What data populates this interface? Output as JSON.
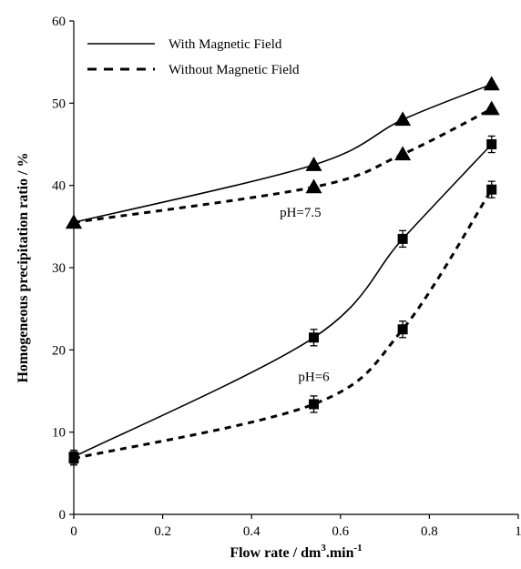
{
  "chart_data": {
    "type": "line",
    "title": "",
    "xlabel": "Flow rate / dm",
    "xlabel_sup1": "3",
    "xlabel_mid": ".min",
    "xlabel_sup2": "-1",
    "ylabel": "Homogeneous precipitation ratio / %",
    "xlim": [
      0,
      1
    ],
    "ylim": [
      0,
      60
    ],
    "xticks": [
      0,
      0.2,
      0.4,
      0.6,
      0.8,
      1
    ],
    "xtick_labels": [
      "0",
      "0.2",
      "0.4",
      "0.6",
      "0.8",
      "1"
    ],
    "yticks": [
      0,
      10,
      20,
      30,
      40,
      50,
      60
    ],
    "ytick_labels": [
      "0",
      "10",
      "20",
      "30",
      "40",
      "50",
      "60"
    ],
    "grid": false,
    "legend_position": "top-left",
    "legend": [
      {
        "label": "With Magnetic Field",
        "style": "solid"
      },
      {
        "label": "Without Magnetic Field",
        "style": "dashed"
      }
    ],
    "annotations": [
      {
        "text": "pH=7.5",
        "x": 0.51,
        "y": 36.2
      },
      {
        "text": "pH=6",
        "x": 0.54,
        "y": 16.2
      }
    ],
    "series": [
      {
        "group": "pH=7.5",
        "magnetic": "with",
        "marker": "triangle",
        "style": "solid",
        "x": [
          0,
          0.54,
          0.74,
          0.94
        ],
        "y": [
          35.5,
          42.5,
          48,
          52.3
        ],
        "err": [
          0,
          0,
          0,
          0
        ]
      },
      {
        "group": "pH=7.5",
        "magnetic": "without",
        "marker": "triangle",
        "style": "dashed",
        "x": [
          0,
          0.54,
          0.74,
          0.94
        ],
        "y": [
          35.5,
          39.8,
          43.8,
          49.3
        ],
        "err": [
          0,
          0,
          0,
          0
        ]
      },
      {
        "group": "pH=6",
        "magnetic": "with",
        "marker": "square",
        "style": "solid",
        "x": [
          0,
          0.54,
          0.74,
          0.94
        ],
        "y": [
          7,
          21.5,
          33.5,
          45
        ],
        "err": [
          0.8,
          1.0,
          1.0,
          1.0
        ]
      },
      {
        "group": "pH=6",
        "magnetic": "without",
        "marker": "square",
        "style": "dashed",
        "x": [
          0,
          0.54,
          0.74,
          0.94
        ],
        "y": [
          6.8,
          13.4,
          22.5,
          39.5
        ],
        "err": [
          0.8,
          1.0,
          1.0,
          1.0
        ]
      }
    ]
  }
}
